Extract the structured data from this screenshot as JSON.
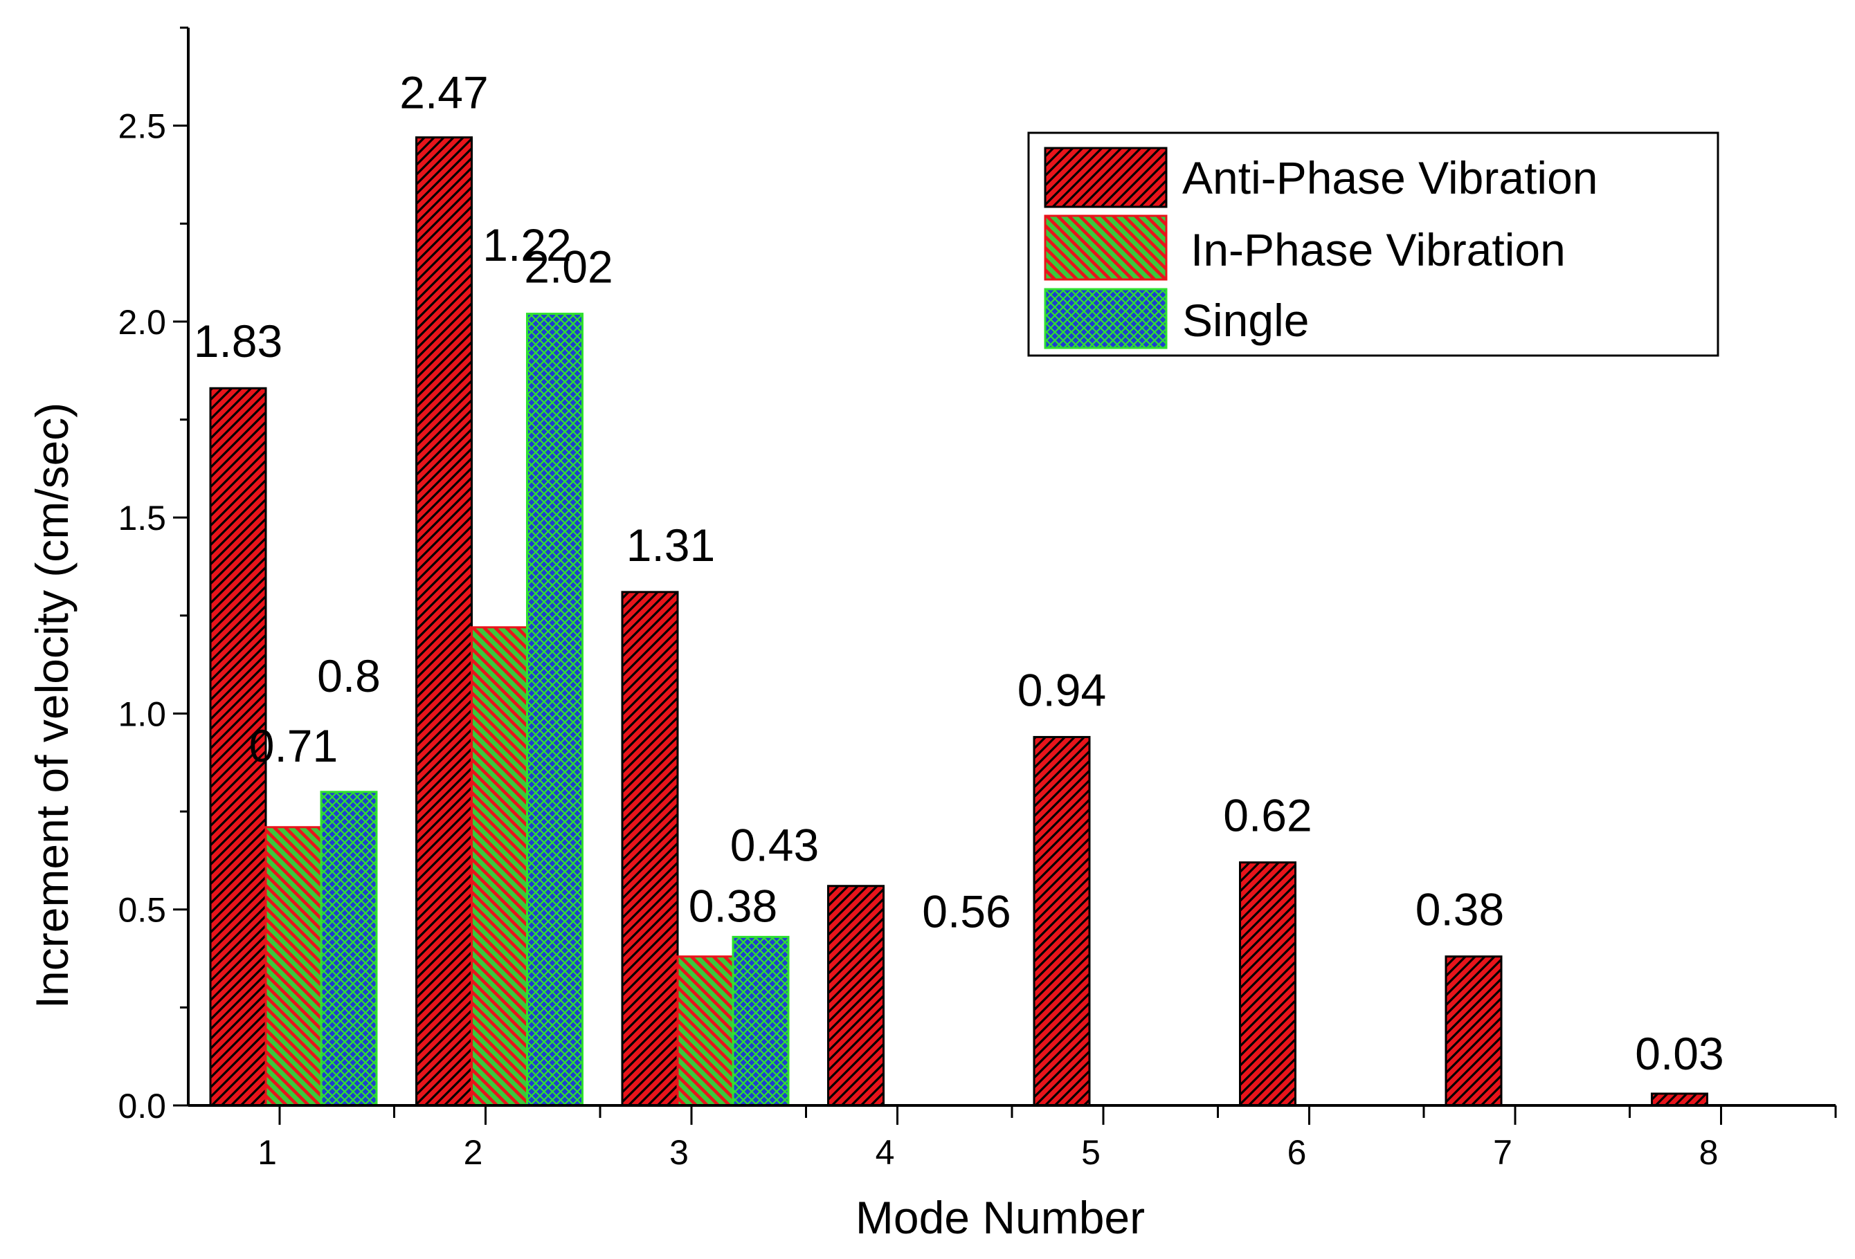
{
  "chart_data": {
    "type": "bar",
    "title": "",
    "xlabel": "Mode Number",
    "ylabel": "Increment of velocity (cm/sec)",
    "ylim": [
      0,
      2.75
    ],
    "yticks": [
      0.0,
      0.5,
      1.0,
      1.5,
      2.0,
      2.5
    ],
    "ytick_labels": [
      "0.0",
      "0.5",
      "1.0",
      "1.5",
      "2.0",
      "2.5"
    ],
    "categories": [
      "1",
      "2",
      "3",
      "4",
      "5",
      "6",
      "7",
      "8"
    ],
    "series": [
      {
        "name": "Anti-Phase Vibration",
        "fill": "#e8141b",
        "hatch": "diagonal-up",
        "stroke": "#000000",
        "values": [
          1.83,
          2.47,
          1.31,
          0.56,
          0.94,
          0.62,
          0.38,
          0.03
        ]
      },
      {
        "name": "In-Phase Vibration",
        "fill": "#3cc83c",
        "hatch": "diagonal-down",
        "stroke": "#e8141b",
        "values": [
          0.71,
          1.22,
          0.38,
          null,
          null,
          null,
          null,
          null
        ]
      },
      {
        "name": "Single",
        "fill": "#1d3fcf",
        "hatch": "crosshatch",
        "stroke": "#30e030",
        "values": [
          0.8,
          2.02,
          0.43,
          null,
          null,
          null,
          null,
          null
        ]
      }
    ],
    "annotations": [
      {
        "text": "1.83",
        "category": "1",
        "series": 0
      },
      {
        "text": "0.71",
        "category": "1",
        "series": 1
      },
      {
        "text": "0.8",
        "category": "1",
        "series": 2
      },
      {
        "text": "2.47",
        "category": "2",
        "series": 0
      },
      {
        "text": "1.22",
        "category": "2",
        "series": 1
      },
      {
        "text": "2.02",
        "category": "2",
        "series": 2
      },
      {
        "text": "1.31",
        "category": "3",
        "series": 0
      },
      {
        "text": "0.38",
        "category": "3",
        "series": 1
      },
      {
        "text": "0.43",
        "category": "3",
        "series": 2
      },
      {
        "text": "0.56",
        "category": "4",
        "series": 0
      },
      {
        "text": "0.94",
        "category": "5",
        "series": 0
      },
      {
        "text": "0.62",
        "category": "6",
        "series": 0
      },
      {
        "text": "0.38",
        "category": "7",
        "series": 0
      },
      {
        "text": "0.03",
        "category": "8",
        "series": 0
      }
    ],
    "legend_position": "top-right",
    "grid": false
  }
}
